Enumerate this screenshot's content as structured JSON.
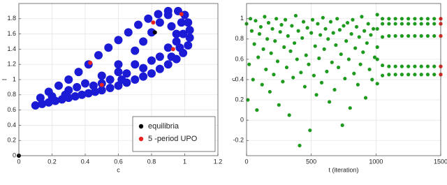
{
  "chart_data": [
    {
      "type": "scatter",
      "x_label": "c",
      "y_label": "l",
      "xlim": [
        0,
        1.2
      ],
      "ylim": [
        0,
        2
      ],
      "xticks": [
        0,
        0.2,
        0.4,
        0.6,
        0.8,
        1,
        1.2
      ],
      "yticks": [
        0,
        0.2,
        0.4,
        0.6,
        0.8,
        1,
        1.2,
        1.4,
        1.6,
        1.8
      ],
      "grid": true,
      "legend": "lower right",
      "series": [
        {
          "color": "#1b1bd6",
          "size": 6,
          "x": [
            0.1,
            0.14,
            0.18,
            0.22,
            0.26,
            0.3,
            0.34,
            0.38,
            0.42,
            0.46,
            0.5,
            0.55,
            0.6,
            0.65,
            0.7,
            0.75,
            0.8,
            0.85,
            0.9,
            0.95,
            0.99,
            1.02,
            1.03,
            1.03,
            1.02,
            1.0,
            0.96,
            0.9,
            0.84,
            0.78,
            0.72,
            0.66,
            0.6,
            0.54,
            0.48,
            0.42,
            0.36,
            0.3,
            0.24,
            0.18,
            0.13,
            0.2,
            0.3,
            0.4,
            0.5,
            0.6,
            0.7,
            0.75,
            0.8,
            0.85,
            0.9,
            0.92,
            0.95,
            0.95,
            0.9,
            0.85,
            0.92,
            0.97,
            0.99,
            0.98,
            0.35,
            0.45,
            0.55,
            0.65,
            0.75,
            0.8,
            0.7,
            0.6,
            0.28,
            0.5,
            0.62
          ],
          "values": [
            0.66,
            0.68,
            0.7,
            0.72,
            0.74,
            0.76,
            0.78,
            0.8,
            0.82,
            0.84,
            0.86,
            0.89,
            0.92,
            0.96,
            1.0,
            1.04,
            1.08,
            1.14,
            1.2,
            1.27,
            1.35,
            1.45,
            1.55,
            1.65,
            1.75,
            1.85,
            1.9,
            1.9,
            1.86,
            1.8,
            1.72,
            1.62,
            1.52,
            1.42,
            1.32,
            1.2,
            1.1,
            1.0,
            0.92,
            0.84,
            0.76,
            0.78,
            0.86,
            0.95,
            1.05,
            1.2,
            1.38,
            1.5,
            1.62,
            1.75,
            1.85,
            1.7,
            1.6,
            1.5,
            1.42,
            1.3,
            1.3,
            1.42,
            1.6,
            1.75,
            0.9,
            0.92,
            1.0,
            1.08,
            1.15,
            1.25,
            1.2,
            1.1,
            0.8,
            0.95,
            1.0
          ]
        },
        {
          "name": "equilibria",
          "color": "#000000",
          "size": 3,
          "x": [
            0,
            0.82
          ],
          "values": [
            0,
            1.62
          ]
        },
        {
          "name": "5 -period UPO",
          "color": "#e8221e",
          "size": 3,
          "x": [
            0.43,
            0.5,
            0.81,
            0.93,
            0.98
          ],
          "values": [
            1.22,
            0.93,
            1.75,
            1.4,
            1.86
          ]
        }
      ]
    },
    {
      "type": "scatter",
      "x_label": "t (iteration)",
      "y_label": "c",
      "xlim": [
        0,
        1500
      ],
      "ylim": [
        -0.35,
        1.15
      ],
      "xticks": [
        0,
        500,
        1000,
        1500
      ],
      "yticks": [
        -0.2,
        0,
        0.2,
        0.4,
        0.6,
        0.8,
        1
      ],
      "grid": true,
      "series": [
        {
          "color": "#1e9a1e",
          "size": 2.6,
          "x": [
            0,
            10,
            20,
            30,
            40,
            50,
            60,
            70,
            80,
            90,
            100,
            110,
            120,
            130,
            140,
            150,
            160,
            170,
            180,
            190,
            200,
            210,
            220,
            230,
            240,
            250,
            260,
            270,
            280,
            290,
            300,
            310,
            320,
            330,
            340,
            350,
            360,
            370,
            380,
            390,
            400,
            410,
            420,
            430,
            440,
            450,
            460,
            470,
            480,
            490,
            500,
            510,
            520,
            530,
            540,
            550,
            560,
            570,
            580,
            590,
            600,
            610,
            620,
            630,
            640,
            650,
            660,
            670,
            680,
            690,
            700,
            710,
            720,
            730,
            740,
            750,
            760,
            770,
            780,
            790,
            800,
            810,
            820,
            830,
            840,
            850,
            860,
            870,
            880,
            890,
            900,
            910,
            920,
            930,
            940,
            950,
            960,
            970,
            980,
            990
          ],
          "values": [
            0.95,
            0.2,
            0.55,
            1.0,
            0.88,
            0.4,
            0.75,
            0.98,
            0.1,
            0.62,
            0.85,
            0.92,
            0.35,
            0.7,
            1.02,
            0.5,
            0.8,
            0.96,
            0.28,
            0.66,
            0.9,
            0.45,
            0.78,
            1.0,
            0.58,
            0.15,
            0.87,
            0.94,
            0.38,
            0.72,
            0.99,
            0.52,
            0.83,
            0.05,
            0.68,
            0.93,
            0.42,
            0.76,
            1.03,
            0.6,
            0.88,
            -0.25,
            0.47,
            0.81,
            0.97,
            0.33,
            0.64,
            0.91,
            0.55,
            -0.1,
            0.86,
            0.99,
            0.44,
            0.73,
            0.25,
            0.95,
            0.61,
            0.84,
            0.37,
            1.01,
            0.7,
            0.9,
            0.48,
            0.8,
            0.18,
            0.97,
            0.57,
            0.86,
            0.3,
            0.74,
            1.0,
            0.52,
            0.89,
            0.65,
            -0.05,
            0.93,
            0.41,
            0.78,
            0.96,
            0.6,
            0.12,
            0.85,
            0.99,
            0.46,
            0.71,
            0.92,
            0.35,
            0.82,
            0.55,
            1.02,
            0.67,
            0.88,
            0.22,
            0.76,
            0.95,
            0.5,
            0.84,
            0.4,
            0.9,
            0.62
          ]
        },
        {
          "color": "#1e9a1e",
          "size": 2.6,
          "x": [
            1010,
            1050,
            1100,
            1150,
            1200,
            1250,
            1300,
            1350,
            1400,
            1450,
            1500
          ],
          "values": [
            1.04,
            1.0,
            1.0,
            1.0,
            1.0,
            1.0,
            1.0,
            1.0,
            1.0,
            1.0,
            1.0
          ]
        },
        {
          "color": "#1e9a1e",
          "size": 2.6,
          "x": [
            1010,
            1050,
            1100,
            1150,
            1200,
            1250,
            1300,
            1350,
            1400,
            1450,
            1500
          ],
          "values": [
            0.9,
            0.95,
            0.95,
            0.95,
            0.95,
            0.95,
            0.95,
            0.95,
            0.95,
            0.95,
            0.95
          ]
        },
        {
          "color": "#1e9a1e",
          "size": 2.6,
          "x": [
            1010,
            1050,
            1100,
            1150,
            1200,
            1250,
            1300,
            1350,
            1400,
            1450,
            1500
          ],
          "values": [
            0.72,
            0.82,
            0.83,
            0.83,
            0.83,
            0.83,
            0.83,
            0.83,
            0.83,
            0.83,
            0.83
          ]
        },
        {
          "color": "#1e9a1e",
          "size": 2.6,
          "x": [
            1010,
            1050,
            1100,
            1150,
            1200,
            1250,
            1300,
            1350,
            1400,
            1450,
            1500
          ],
          "values": [
            0.6,
            0.54,
            0.53,
            0.53,
            0.53,
            0.53,
            0.53,
            0.53,
            0.53,
            0.53,
            0.53
          ]
        },
        {
          "color": "#1e9a1e",
          "size": 2.6,
          "x": [
            1010,
            1050,
            1100,
            1150,
            1200,
            1250,
            1300,
            1350,
            1400,
            1450,
            1500
          ],
          "values": [
            0.36,
            0.44,
            0.45,
            0.45,
            0.45,
            0.45,
            0.45,
            0.45,
            0.45,
            0.45,
            0.45
          ]
        },
        {
          "color": "#e8221e",
          "size": 2.6,
          "x": [
            1500,
            1500,
            1500,
            1500,
            1500
          ],
          "values": [
            1.0,
            0.95,
            0.83,
            0.53,
            0.45
          ]
        }
      ]
    }
  ]
}
